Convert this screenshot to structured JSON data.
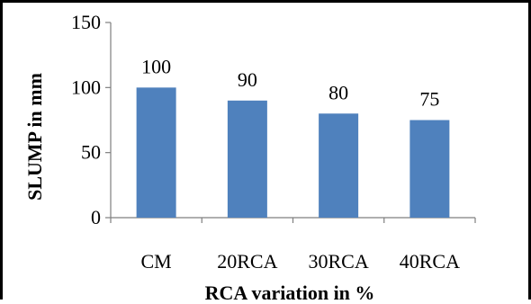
{
  "chart_data": {
    "type": "bar",
    "categories": [
      "CM",
      "20RCA",
      "30RCA",
      "40RCA"
    ],
    "values": [
      100,
      90,
      80,
      75
    ],
    "data_labels": [
      "100",
      "90",
      "80",
      "75"
    ],
    "title": "",
    "xlabel": "RCA variation in %",
    "ylabel": "SLUMP in mm",
    "ylim": [
      0,
      150
    ],
    "yticks": [
      0,
      50,
      100,
      150
    ],
    "grid": false,
    "legend": "none",
    "bar_color": "#4f81bd"
  }
}
